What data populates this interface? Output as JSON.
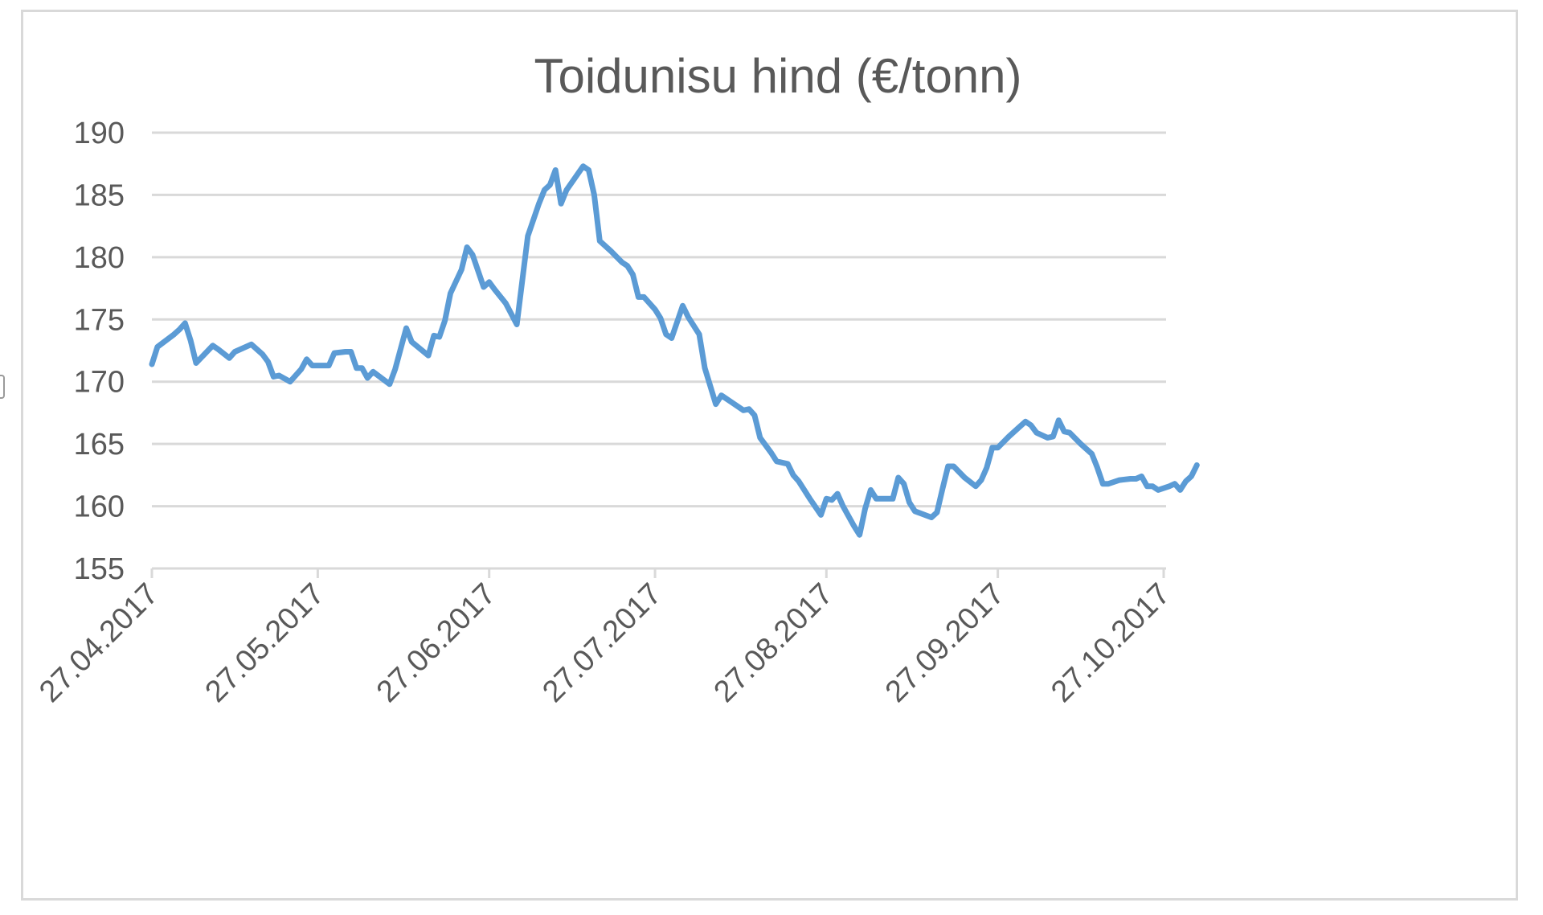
{
  "colors": {
    "line": "#5b9bd5",
    "grid": "#d9d9d9",
    "text": "#595959",
    "border": "#d9d9d9"
  },
  "chart_data": {
    "type": "line",
    "title": "Toidunisu hind (€/tonn)",
    "xlabel": "",
    "ylabel": "",
    "ylim": [
      155,
      190
    ],
    "y_ticks": [
      "155",
      "160",
      "165",
      "170",
      "175",
      "180",
      "185",
      "190"
    ],
    "x_ticks": [
      "27.04.2017",
      "27.05.2017",
      "27.06.2017",
      "27.07.2017",
      "27.08.2017",
      "27.09.2017",
      "27.10.2017"
    ],
    "grid": true,
    "legend": "none",
    "series": [
      {
        "values": [
          [
            "2017-04-27",
            171.4
          ],
          [
            "2017-04-28",
            172.8
          ],
          [
            "2017-05-01",
            173.8
          ],
          [
            "2017-05-02",
            174.2
          ],
          [
            "2017-05-03",
            174.7
          ],
          [
            "2017-05-04",
            173.3
          ],
          [
            "2017-05-05",
            171.5
          ],
          [
            "2017-05-08",
            172.9
          ],
          [
            "2017-05-09",
            172.6
          ],
          [
            "2017-05-11",
            171.9
          ],
          [
            "2017-05-12",
            172.4
          ],
          [
            "2017-05-15",
            173.0
          ],
          [
            "2017-05-16",
            172.6
          ],
          [
            "2017-05-17",
            172.2
          ],
          [
            "2017-05-18",
            171.6
          ],
          [
            "2017-05-19",
            170.4
          ],
          [
            "2017-05-20",
            170.5
          ],
          [
            "2017-05-22",
            170.0
          ],
          [
            "2017-05-24",
            171.0
          ],
          [
            "2017-05-25",
            171.8
          ],
          [
            "2017-05-26",
            171.3
          ],
          [
            "2017-05-29",
            171.3
          ],
          [
            "2017-05-30",
            172.3
          ],
          [
            "2017-06-01",
            172.4
          ],
          [
            "2017-06-02",
            172.4
          ],
          [
            "2017-06-03",
            171.1
          ],
          [
            "2017-06-04",
            171.1
          ],
          [
            "2017-06-05",
            170.3
          ],
          [
            "2017-06-06",
            170.8
          ],
          [
            "2017-06-09",
            169.8
          ],
          [
            "2017-06-10",
            171.0
          ],
          [
            "2017-06-12",
            174.3
          ],
          [
            "2017-06-13",
            173.2
          ],
          [
            "2017-06-16",
            172.1
          ],
          [
            "2017-06-17",
            173.7
          ],
          [
            "2017-06-18",
            173.6
          ],
          [
            "2017-06-19",
            174.9
          ],
          [
            "2017-06-20",
            177.1
          ],
          [
            "2017-06-22",
            179.0
          ],
          [
            "2017-06-23",
            180.8
          ],
          [
            "2017-06-24",
            180.2
          ],
          [
            "2017-06-26",
            177.6
          ],
          [
            "2017-06-27",
            178.0
          ],
          [
            "2017-06-28",
            177.4
          ],
          [
            "2017-06-30",
            176.3
          ],
          [
            "2017-07-02",
            174.6
          ],
          [
            "2017-07-04",
            181.7
          ],
          [
            "2017-07-06",
            184.3
          ],
          [
            "2017-07-07",
            185.4
          ],
          [
            "2017-07-08",
            185.8
          ],
          [
            "2017-07-09",
            187.0
          ],
          [
            "2017-07-10",
            184.3
          ],
          [
            "2017-07-11",
            185.4
          ],
          [
            "2017-07-14",
            187.3
          ],
          [
            "2017-07-15",
            187.0
          ],
          [
            "2017-07-16",
            185.0
          ],
          [
            "2017-07-17",
            181.3
          ],
          [
            "2017-07-19",
            180.5
          ],
          [
            "2017-07-21",
            179.6
          ],
          [
            "2017-07-22",
            179.3
          ],
          [
            "2017-07-23",
            178.6
          ],
          [
            "2017-07-24",
            176.8
          ],
          [
            "2017-07-25",
            176.8
          ],
          [
            "2017-07-27",
            175.8
          ],
          [
            "2017-07-28",
            175.1
          ],
          [
            "2017-07-29",
            173.8
          ],
          [
            "2017-07-30",
            173.5
          ],
          [
            "2017-08-01",
            176.1
          ],
          [
            "2017-08-02",
            175.2
          ],
          [
            "2017-08-04",
            173.8
          ],
          [
            "2017-08-05",
            171.1
          ],
          [
            "2017-08-07",
            168.2
          ],
          [
            "2017-08-08",
            168.9
          ],
          [
            "2017-08-10",
            168.3
          ],
          [
            "2017-08-12",
            167.7
          ],
          [
            "2017-08-13",
            167.8
          ],
          [
            "2017-08-14",
            167.3
          ],
          [
            "2017-08-15",
            165.5
          ],
          [
            "2017-08-17",
            164.3
          ],
          [
            "2017-08-18",
            163.6
          ],
          [
            "2017-08-20",
            163.4
          ],
          [
            "2017-08-21",
            162.5
          ],
          [
            "2017-08-22",
            162.0
          ],
          [
            "2017-08-24",
            160.6
          ],
          [
            "2017-08-26",
            159.3
          ],
          [
            "2017-08-27",
            160.6
          ],
          [
            "2017-08-28",
            160.5
          ],
          [
            "2017-08-29",
            161.0
          ],
          [
            "2017-08-30",
            160.0
          ],
          [
            "2017-09-01",
            158.4
          ],
          [
            "2017-09-02",
            157.7
          ],
          [
            "2017-09-03",
            159.8
          ],
          [
            "2017-09-04",
            161.3
          ],
          [
            "2017-09-05",
            160.6
          ],
          [
            "2017-09-08",
            160.6
          ],
          [
            "2017-09-09",
            162.3
          ],
          [
            "2017-09-10",
            161.8
          ],
          [
            "2017-09-11",
            160.3
          ],
          [
            "2017-09-12",
            159.6
          ],
          [
            "2017-09-15",
            159.1
          ],
          [
            "2017-09-16",
            159.5
          ],
          [
            "2017-09-17",
            161.4
          ],
          [
            "2017-09-18",
            163.2
          ],
          [
            "2017-09-19",
            163.2
          ],
          [
            "2017-09-21",
            162.3
          ],
          [
            "2017-09-23",
            161.6
          ],
          [
            "2017-09-24",
            162.1
          ],
          [
            "2017-09-25",
            163.1
          ],
          [
            "2017-09-26",
            164.7
          ],
          [
            "2017-09-27",
            164.7
          ],
          [
            "2017-09-29",
            165.6
          ],
          [
            "2017-10-01",
            166.4
          ],
          [
            "2017-10-02",
            166.8
          ],
          [
            "2017-10-03",
            166.5
          ],
          [
            "2017-10-04",
            165.9
          ],
          [
            "2017-10-06",
            165.5
          ],
          [
            "2017-10-07",
            165.6
          ],
          [
            "2017-10-08",
            166.9
          ],
          [
            "2017-10-09",
            166.0
          ],
          [
            "2017-10-10",
            165.9
          ],
          [
            "2017-10-12",
            165.0
          ],
          [
            "2017-10-14",
            164.2
          ],
          [
            "2017-10-15",
            163.1
          ],
          [
            "2017-10-16",
            161.8
          ],
          [
            "2017-10-17",
            161.8
          ],
          [
            "2017-10-19",
            162.1
          ],
          [
            "2017-10-21",
            162.2
          ],
          [
            "2017-10-22",
            162.2
          ],
          [
            "2017-10-23",
            162.4
          ],
          [
            "2017-10-24",
            161.6
          ],
          [
            "2017-10-25",
            161.6
          ],
          [
            "2017-10-26",
            161.3
          ],
          [
            "2017-10-28",
            161.6
          ],
          [
            "2017-10-29",
            161.8
          ],
          [
            "2017-10-30",
            161.3
          ],
          [
            "2017-10-31",
            162.0
          ],
          [
            "2017-11-01",
            162.4
          ],
          [
            "2017-11-02",
            163.3
          ]
        ]
      }
    ]
  }
}
